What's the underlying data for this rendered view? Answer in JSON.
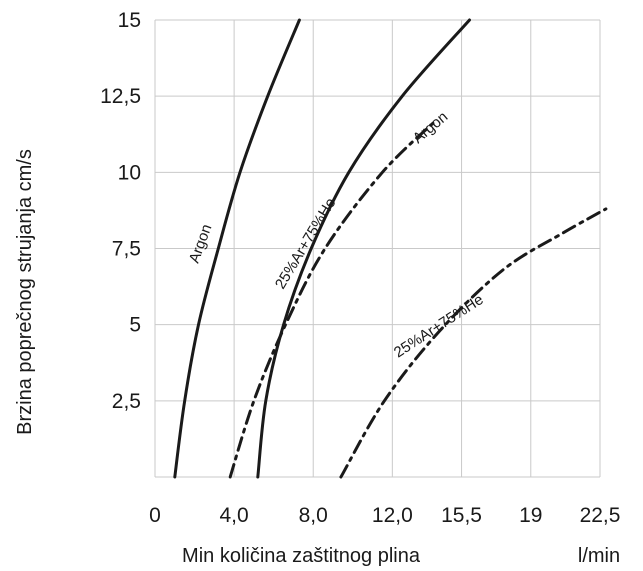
{
  "chart_data": {
    "type": "line",
    "xlabel": "Min količina zaštitnog plina",
    "xunit": "l/min",
    "ylabel": "Brzina poprečnog strujanja cm/s",
    "x_ticks": [
      "0",
      "4,0",
      "8,0",
      "12,0",
      "15,5",
      "19",
      "22,5"
    ],
    "y_ticks": [
      "2,5",
      "5",
      "7,5",
      "10",
      "12,5",
      "15"
    ],
    "xlim": [
      0,
      22.5
    ],
    "ylim": [
      0,
      15
    ],
    "grid": true,
    "series": [
      {
        "name": "Argon",
        "style": "solid",
        "color": "#1a1a1a",
        "points": [
          [
            1.0,
            0
          ],
          [
            1.5,
            2.5
          ],
          [
            2.2,
            5
          ],
          [
            3.2,
            7.5
          ],
          [
            4.3,
            10
          ],
          [
            5.7,
            12.5
          ],
          [
            7.3,
            15
          ]
        ]
      },
      {
        "name": "25%Ar+75%He",
        "style": "solid",
        "color": "#1a1a1a",
        "points": [
          [
            5.2,
            0
          ],
          [
            5.6,
            2.5
          ],
          [
            6.5,
            5
          ],
          [
            7.9,
            7.5
          ],
          [
            9.8,
            10
          ],
          [
            12.5,
            12.5
          ],
          [
            15.9,
            15
          ]
        ]
      },
      {
        "name": "Argon",
        "style": "dashdot",
        "color": "#1a1a1a",
        "points": [
          [
            3.8,
            0
          ],
          [
            5.0,
            2.5
          ],
          [
            6.6,
            5
          ],
          [
            8.6,
            7.5
          ],
          [
            11.5,
            10
          ],
          [
            14.2,
            11.7
          ]
        ]
      },
      {
        "name": "25%Ar+75%He",
        "style": "dashdot",
        "color": "#1a1a1a",
        "points": [
          [
            9.4,
            0
          ],
          [
            11.6,
            2.5
          ],
          [
            14.4,
            4.8
          ],
          [
            17.6,
            6.8
          ],
          [
            20.6,
            8.0
          ],
          [
            22.8,
            8.8
          ]
        ]
      }
    ],
    "curve_labels": [
      "Argon",
      "25%Ar+75%He",
      "Argon",
      "25%Ar+75%He"
    ]
  }
}
